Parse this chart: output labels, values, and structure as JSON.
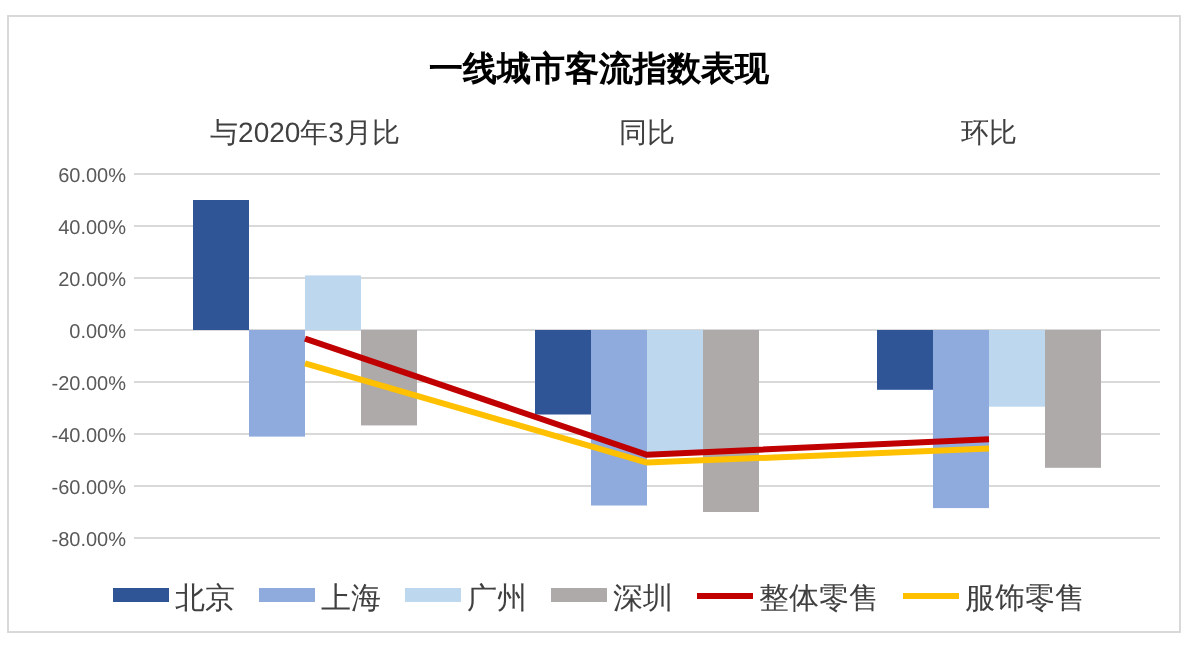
{
  "chart_data": {
    "type": "bar",
    "title": "一线城市客流指数表现",
    "categories": [
      "与2020年3月比",
      "同比",
      "环比"
    ],
    "series": [
      {
        "name": "北京",
        "color": "#2f5597",
        "values": [
          50,
          -32.5,
          -23
        ]
      },
      {
        "name": "上海",
        "color": "#8faadc",
        "values": [
          -41,
          -67.5,
          -68.5
        ]
      },
      {
        "name": "广州",
        "color": "#bdd7ee",
        "values": [
          21,
          -47.5,
          -29.5
        ]
      },
      {
        "name": "深圳",
        "color": "#aeaaaa",
        "values": [
          -36.7,
          -70,
          -53
        ]
      },
      {
        "name": "整体零售",
        "type": "line",
        "color": "#c00000",
        "values": [
          -3.3,
          -48,
          -42
        ]
      },
      {
        "name": "服饰零售",
        "type": "line",
        "color": "#ffc000",
        "values": [
          -12.8,
          -51,
          -45.6
        ]
      }
    ],
    "ylim": [
      -80,
      60
    ],
    "yticks": [
      {
        "value": -80,
        "label": "-80.00%"
      },
      {
        "value": -60,
        "label": "-60.00%"
      },
      {
        "value": -40,
        "label": "-40.00%"
      },
      {
        "value": -20,
        "label": "-20.00%"
      },
      {
        "value": 0,
        "label": "0.00%"
      },
      {
        "value": 20,
        "label": "20.00%"
      },
      {
        "value": 40,
        "label": "40.00%"
      },
      {
        "value": 60,
        "label": "60.00%"
      }
    ],
    "grid": "y",
    "legend": "bottom",
    "marker": "none"
  }
}
